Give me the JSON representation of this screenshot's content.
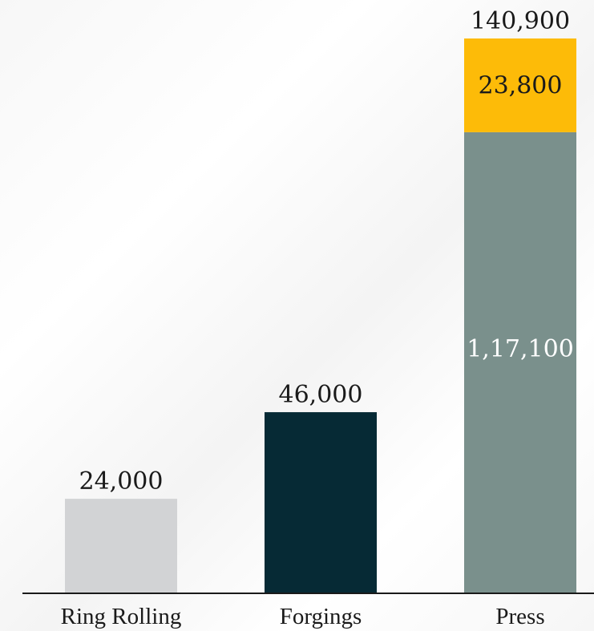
{
  "chart_data": {
    "type": "bar",
    "stacked": true,
    "categories": [
      "Ring Rolling",
      "Forgings",
      "Press"
    ],
    "series": [
      {
        "values": [
          24000,
          46000,
          117100
        ],
        "value_labels": [
          "24,000",
          "46,000",
          "1,17,100"
        ]
      },
      {
        "values": [
          0,
          0,
          23800
        ],
        "value_labels": [
          "",
          "",
          "23,800"
        ]
      }
    ],
    "totals": [
      24000,
      46000,
      140900
    ],
    "total_labels": [
      "",
      "",
      "140,900"
    ],
    "ylim": [
      0,
      140900
    ],
    "grid": false,
    "colors": {
      "Ring Rolling": "#d2d3d5",
      "Forgings": "#062a35",
      "Press": "#7a908c",
      "Press-top": "#fdbb08",
      "axis": "#1a1a1a"
    }
  }
}
